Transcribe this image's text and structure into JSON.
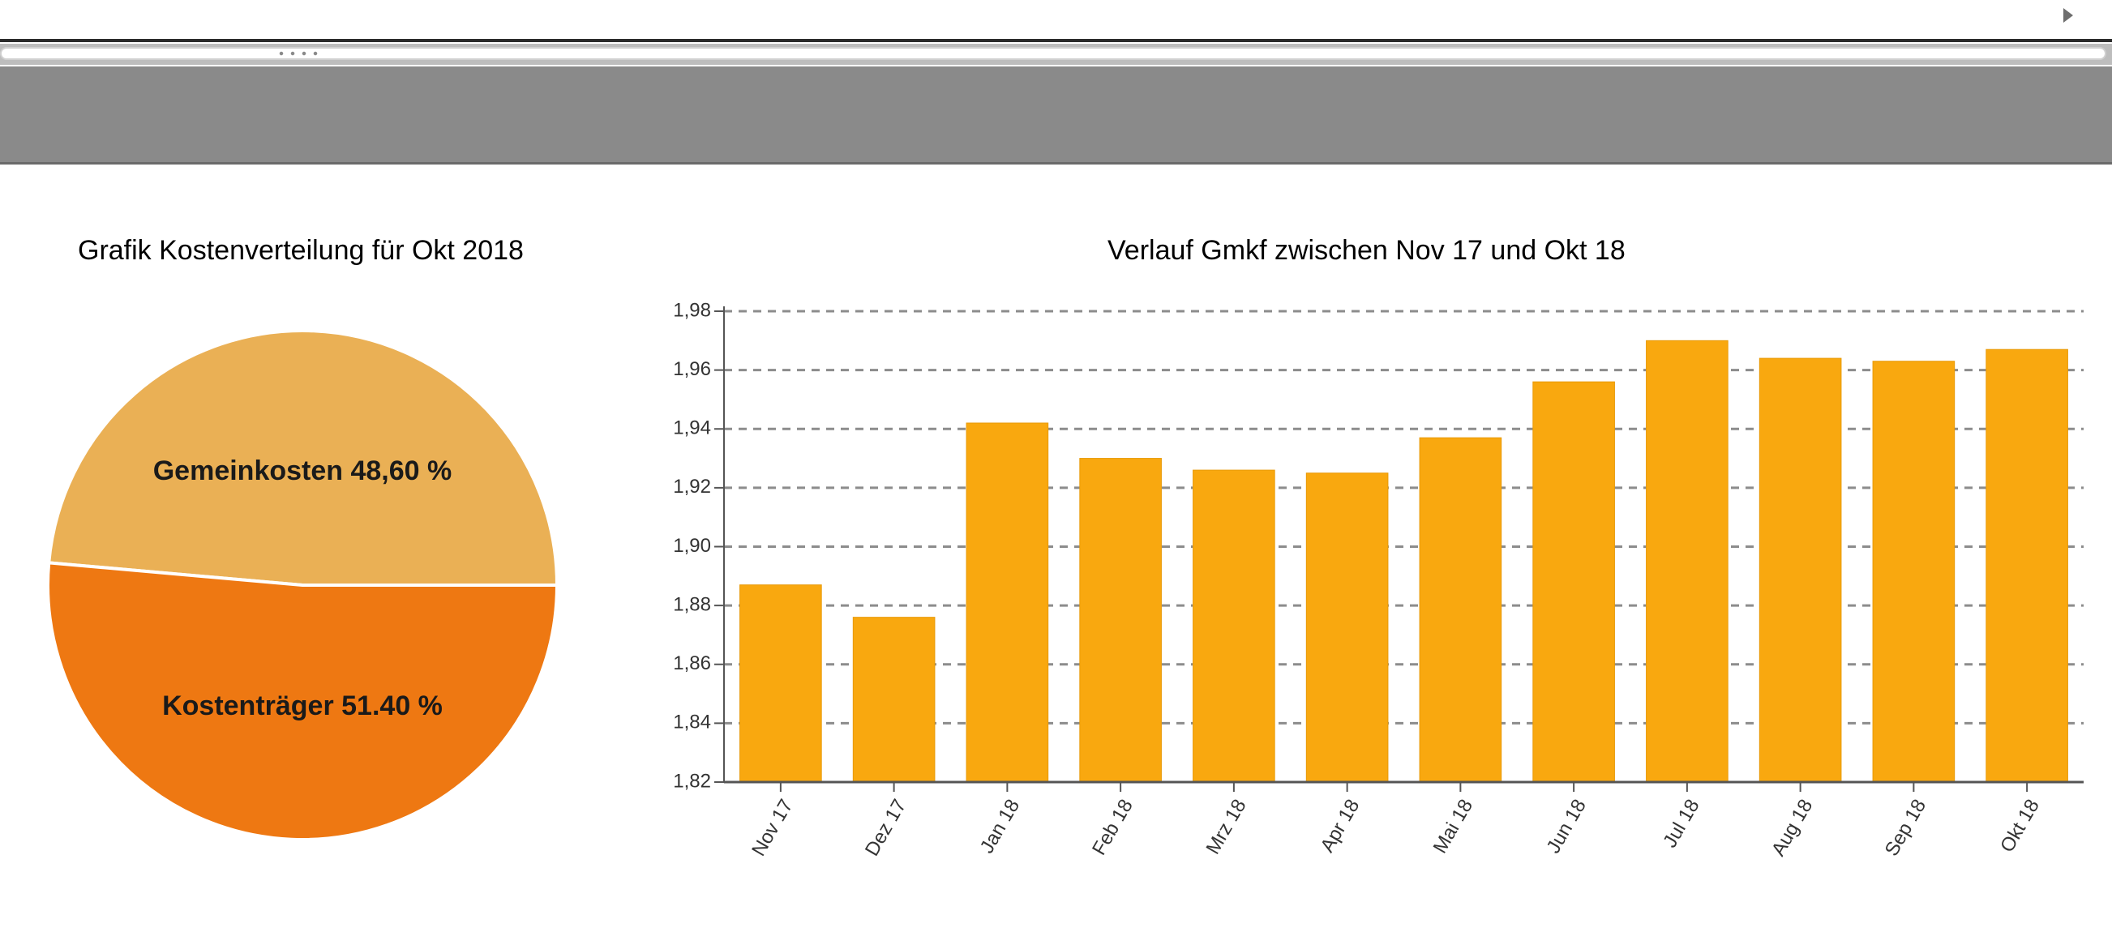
{
  "colors": {
    "bar": "#f9a80f",
    "pie_gemeinkosten": "#eab055",
    "pie_kostentraeger": "#ee7812",
    "grid": "#8c8c8c",
    "axis": "#555555"
  },
  "chart_data": [
    {
      "type": "pie",
      "title": "Grafik Kostenverteilung für Okt 2018",
      "slices": [
        {
          "label": "Gemeinkosten 48,60 %",
          "value": 48.6,
          "color": "#eab055"
        },
        {
          "label": "Kostenträger 51.40 %",
          "value": 51.4,
          "color": "#ee7812"
        }
      ]
    },
    {
      "type": "bar",
      "title": "Verlauf Gmkf zwischen Nov 17 und Okt 18",
      "xlabel": "",
      "ylabel": "",
      "categories": [
        "Nov 17",
        "Dez 17",
        "Jan 18",
        "Feb 18",
        "Mrz 18",
        "Apr 18",
        "Mai 18",
        "Jun 18",
        "Jul 18",
        "Aug 18",
        "Sep 18",
        "Okt 18"
      ],
      "values": [
        1.887,
        1.876,
        1.942,
        1.93,
        1.926,
        1.925,
        1.937,
        1.956,
        1.97,
        1.964,
        1.963,
        1.967
      ],
      "ylim": [
        1.82,
        1.98
      ],
      "yticks": [
        1.82,
        1.84,
        1.86,
        1.88,
        1.9,
        1.92,
        1.94,
        1.96,
        1.98
      ],
      "ytick_labels": [
        "1,82",
        "1,84",
        "1,86",
        "1,88",
        "1,90",
        "1,92",
        "1,94",
        "1,96",
        "1,98"
      ],
      "grid": true
    }
  ]
}
